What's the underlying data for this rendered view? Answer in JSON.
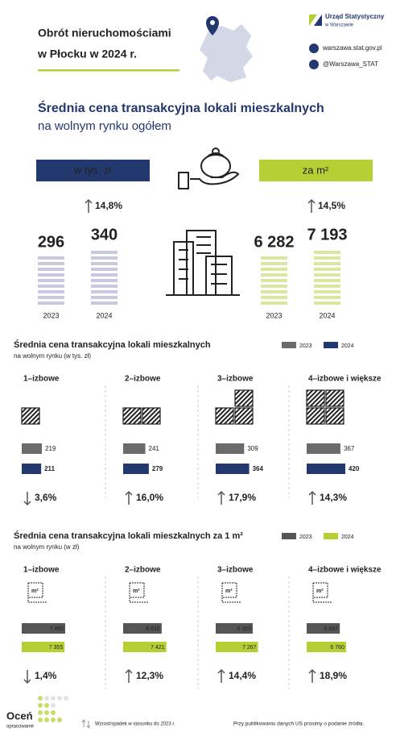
{
  "header": {
    "title_line1": "Obrót nieruchomościami",
    "title_line2": "w Płocku w 2024 r.",
    "org": "Urząd Statystyczny",
    "org_sub": "w Warszawie",
    "website": "warszawa.stat.gov.pl",
    "social": "@Warszawa_STAT"
  },
  "summary": {
    "title": "Średnia cena transakcyjna lokali mieszkalnych",
    "subtitle": "na wolnym rynku ogółem",
    "panels": [
      {
        "label": "w tys. zł",
        "change": "14,8%",
        "direction": "up",
        "color": "#23386f",
        "bar_color": "#c6c9e0",
        "years": [
          "2023",
          "2024"
        ],
        "values": [
          296,
          340
        ]
      },
      {
        "label": "za m²",
        "change": "14,5%",
        "direction": "up",
        "color": "#b5cf34",
        "bar_color": "#d9e79f",
        "years": [
          "2023",
          "2024"
        ],
        "values": [
          6282,
          7193
        ],
        "value_labels": [
          "6 282",
          "7 193"
        ]
      }
    ]
  },
  "price_total": {
    "title": "Średnia cena transakcyjna lokali mieszkalnych",
    "subtitle": "na wolnym rynku (w tys. zł)",
    "series": [
      {
        "name": "2023",
        "color": "#6b6b6b"
      },
      {
        "name": "2024",
        "color": "#23386f"
      }
    ],
    "groups": [
      {
        "label": "1–izbowe",
        "values": [
          219,
          211
        ],
        "change": "3,6%",
        "direction": "down"
      },
      {
        "label": "2–izbowe",
        "values": [
          241,
          279
        ],
        "change": "16,0%",
        "direction": "up"
      },
      {
        "label": "3–izbowe",
        "values": [
          309,
          364
        ],
        "change": "17,9%",
        "direction": "up"
      },
      {
        "label": "4–izbowe i większe",
        "values": [
          367,
          420
        ],
        "change": "14,3%",
        "direction": "up"
      }
    ]
  },
  "price_m2": {
    "title": "Średnia cena transakcyjna lokali mieszkalnych za 1 m²",
    "subtitle": "na wolnym rynku (w zł)",
    "series": [
      {
        "name": "2023",
        "color": "#555555"
      },
      {
        "name": "2024",
        "color": "#b5cf34"
      }
    ],
    "icon_label": "m²",
    "groups": [
      {
        "label": "1–izbowe",
        "values": [
          7460,
          7355
        ],
        "value_labels": [
          "7 460",
          "7 355"
        ],
        "change": "1,4%",
        "direction": "down"
      },
      {
        "label": "2–izbowe",
        "values": [
          6610,
          7421
        ],
        "value_labels": [
          "6 610",
          "7 421"
        ],
        "change": "12,3%",
        "direction": "up"
      },
      {
        "label": "3–izbowe",
        "values": [
          6353,
          7267
        ],
        "value_labels": [
          "6 353",
          "7 267"
        ],
        "change": "14,4%",
        "direction": "up"
      },
      {
        "label": "4–izbowe i większe",
        "values": [
          5687,
          6760
        ],
        "value_labels": [
          "5 687",
          "6 760"
        ],
        "change": "18,9%",
        "direction": "up"
      }
    ]
  },
  "footer": {
    "rate": "Oceń",
    "rate_sub": "opracowanie",
    "legend": "Wzrost/spadek w stosunku do 2023 r.",
    "note": "Przy publikowaniu danych US prosimy o podanie źródła."
  }
}
